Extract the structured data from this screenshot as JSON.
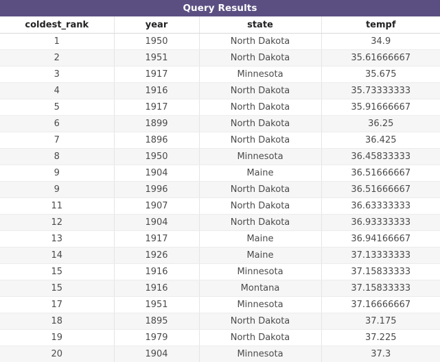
{
  "title": "Query Results",
  "columns": [
    "coldest_rank",
    "year",
    "state",
    "tempf"
  ],
  "rows": [
    [
      "1",
      "1950",
      "North Dakota",
      "34.9"
    ],
    [
      "2",
      "1951",
      "North Dakota",
      "35.61666667"
    ],
    [
      "3",
      "1917",
      "Minnesota",
      "35.675"
    ],
    [
      "4",
      "1916",
      "North Dakota",
      "35.73333333"
    ],
    [
      "5",
      "1917",
      "North Dakota",
      "35.91666667"
    ],
    [
      "6",
      "1899",
      "North Dakota",
      "36.25"
    ],
    [
      "7",
      "1896",
      "North Dakota",
      "36.425"
    ],
    [
      "8",
      "1950",
      "Minnesota",
      "36.45833333"
    ],
    [
      "9",
      "1904",
      "Maine",
      "36.51666667"
    ],
    [
      "9",
      "1996",
      "North Dakota",
      "36.51666667"
    ],
    [
      "11",
      "1907",
      "North Dakota",
      "36.63333333"
    ],
    [
      "12",
      "1904",
      "North Dakota",
      "36.93333333"
    ],
    [
      "13",
      "1917",
      "Maine",
      "36.94166667"
    ],
    [
      "14",
      "1926",
      "Maine",
      "37.13333333"
    ],
    [
      "15",
      "1916",
      "Minnesota",
      "37.15833333"
    ],
    [
      "15",
      "1916",
      "Montana",
      "37.15833333"
    ],
    [
      "17",
      "1951",
      "Minnesota",
      "37.16666667"
    ],
    [
      "18",
      "1895",
      "North Dakota",
      "37.175"
    ],
    [
      "19",
      "1979",
      "North Dakota",
      "37.225"
    ],
    [
      "20",
      "1904",
      "Minnesota",
      "37.3"
    ]
  ],
  "colors": {
    "title_bar": "#5b4f82",
    "title_text": "#ffffff",
    "stripe": "#f6f6f6"
  }
}
